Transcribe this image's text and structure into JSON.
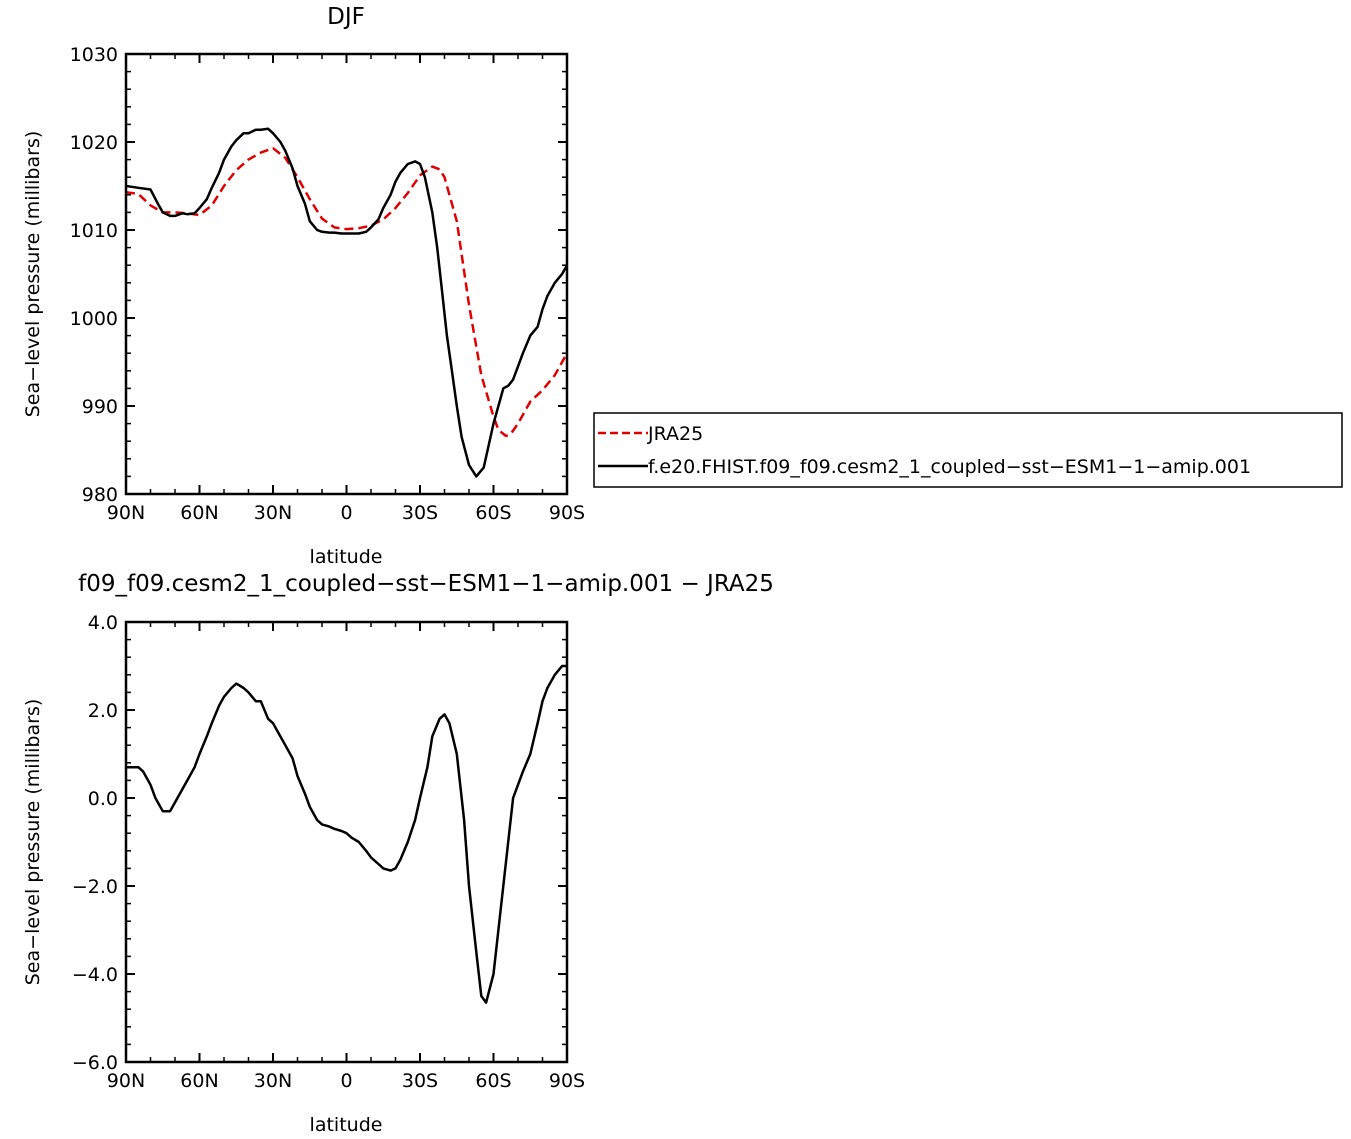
{
  "chart_data": [
    {
      "type": "line",
      "title": "DJF",
      "xlabel": "latitude",
      "ylabel": "Sea−level pressure (millibars)",
      "xlim": [
        90,
        -90
      ],
      "ylim": [
        980,
        1030
      ],
      "x_ticks": [
        90,
        60,
        30,
        0,
        -30,
        -60,
        -90
      ],
      "x_tick_labels": [
        "90N",
        "60N",
        "30N",
        "0",
        "30S",
        "60S",
        "90S"
      ],
      "y_ticks": [
        980,
        990,
        1000,
        1010,
        1020,
        1030
      ],
      "y_tick_labels": [
        "980",
        "990",
        "1000",
        "1010",
        "1020",
        "1030"
      ],
      "legend_position": "outside-right",
      "series": [
        {
          "name": "JRA25",
          "color": "#e00000",
          "dash": true,
          "x": [
            90,
            85,
            80,
            75,
            70,
            65,
            60,
            55,
            50,
            45,
            40,
            35,
            30,
            25,
            20,
            15,
            10,
            5,
            0,
            -5,
            -10,
            -15,
            -20,
            -25,
            -30,
            -35,
            -38,
            -40,
            -45,
            -50,
            -55,
            -60,
            -62,
            -65,
            -67,
            -70,
            -75,
            -80,
            -85,
            -90
          ],
          "y": [
            1014.3,
            1014.1,
            1012.8,
            1012.0,
            1012.0,
            1011.9,
            1011.7,
            1012.8,
            1015.0,
            1016.8,
            1018.0,
            1018.8,
            1019.3,
            1018.2,
            1016.0,
            1013.5,
            1011.3,
            1010.3,
            1010.1,
            1010.2,
            1010.5,
            1011.2,
            1012.5,
            1014.2,
            1016.2,
            1017.2,
            1016.9,
            1016.0,
            1011.0,
            1001.5,
            993.5,
            988.8,
            987.3,
            986.6,
            986.8,
            988.0,
            990.5,
            991.8,
            993.5,
            996.0
          ]
        },
        {
          "name": "f.e20.FHIST.f09_f09.cesm2_1_coupled−sst−ESM1−1−amip.001",
          "color": "#000000",
          "dash": false,
          "x": [
            90,
            85,
            80,
            77,
            75,
            72,
            70,
            67,
            65,
            62,
            60,
            57,
            55,
            52,
            50,
            47,
            45,
            42,
            40,
            37,
            35,
            32,
            30,
            27,
            25,
            22,
            20,
            17,
            15,
            12,
            10,
            7,
            5,
            2,
            0,
            -2,
            -5,
            -8,
            -10,
            -13,
            -15,
            -18,
            -20,
            -22,
            -25,
            -28,
            -30,
            -32,
            -35,
            -37,
            -39,
            -41,
            -43,
            -45,
            -47,
            -50,
            -53,
            -56,
            -58,
            -60,
            -62,
            -64,
            -66,
            -68,
            -70,
            -72,
            -75,
            -78,
            -80,
            -82,
            -85,
            -88,
            -90
          ],
          "y": [
            1015.0,
            1014.8,
            1014.6,
            1013.0,
            1012.0,
            1011.6,
            1011.6,
            1011.9,
            1011.8,
            1011.9,
            1012.5,
            1013.5,
            1014.8,
            1016.5,
            1018.0,
            1019.5,
            1020.2,
            1021.0,
            1021.0,
            1021.4,
            1021.4,
            1021.5,
            1021.0,
            1020.0,
            1019.0,
            1017.0,
            1015.0,
            1013.0,
            1011.0,
            1010.0,
            1009.8,
            1009.7,
            1009.7,
            1009.6,
            1009.6,
            1009.6,
            1009.6,
            1009.8,
            1010.3,
            1011.2,
            1012.5,
            1014.0,
            1015.5,
            1016.5,
            1017.5,
            1017.8,
            1017.5,
            1016.0,
            1012.0,
            1008.0,
            1003.0,
            998.0,
            994.0,
            990.0,
            986.5,
            983.3,
            982.0,
            983.0,
            985.5,
            988.0,
            990.0,
            992.0,
            992.3,
            993.0,
            994.5,
            996.0,
            998.0,
            999.0,
            1001.0,
            1002.5,
            1004.0,
            1005.0,
            1006.0
          ]
        }
      ],
      "legend_entries": [
        "JRA25",
        "f.e20.FHIST.f09_f09.cesm2_1_coupled−sst−ESM1−1−amip.001"
      ]
    },
    {
      "type": "line",
      "title": "f09_f09.cesm2_1_coupled−sst−ESM1−1−amip.001 − JRA25",
      "xlabel": "latitude",
      "ylabel": "Sea−level pressure (millibars)",
      "xlim": [
        90,
        -90
      ],
      "ylim": [
        -6.0,
        4.0
      ],
      "x_ticks": [
        90,
        60,
        30,
        0,
        -30,
        -60,
        -90
      ],
      "x_tick_labels": [
        "90N",
        "60N",
        "30N",
        "0",
        "30S",
        "60S",
        "90S"
      ],
      "y_ticks": [
        -6,
        -4,
        -2,
        0,
        2,
        4
      ],
      "y_tick_labels": [
        "−6.0",
        "−4.0",
        "−2.0",
        "0.0",
        "2.0",
        "4.0"
      ],
      "series": [
        {
          "color": "#000000",
          "x": [
            90,
            85,
            83,
            80,
            78,
            75,
            72,
            70,
            68,
            65,
            62,
            60,
            57,
            55,
            52,
            50,
            47,
            45,
            42,
            40,
            37,
            35,
            32,
            30,
            28,
            25,
            22,
            20,
            17,
            15,
            12,
            10,
            7,
            5,
            2,
            0,
            -2,
            -5,
            -8,
            -10,
            -13,
            -15,
            -18,
            -20,
            -22,
            -25,
            -28,
            -30,
            -33,
            -35,
            -38,
            -40,
            -42,
            -45,
            -48,
            -50,
            -53,
            -55,
            -57,
            -60,
            -62,
            -64,
            -66,
            -68,
            -70,
            -72,
            -75,
            -78,
            -80,
            -82,
            -85,
            -88,
            -90
          ],
          "y": [
            0.7,
            0.7,
            0.6,
            0.3,
            0.0,
            -0.3,
            -0.3,
            -0.1,
            0.1,
            0.4,
            0.7,
            1.0,
            1.4,
            1.7,
            2.1,
            2.3,
            2.5,
            2.6,
            2.5,
            2.4,
            2.2,
            2.2,
            1.8,
            1.7,
            1.5,
            1.2,
            0.9,
            0.5,
            0.1,
            -0.2,
            -0.5,
            -0.6,
            -0.65,
            -0.7,
            -0.75,
            -0.8,
            -0.9,
            -1.0,
            -1.2,
            -1.35,
            -1.5,
            -1.6,
            -1.65,
            -1.6,
            -1.4,
            -1.0,
            -0.5,
            0.0,
            0.7,
            1.4,
            1.8,
            1.9,
            1.7,
            1.0,
            -0.5,
            -2.0,
            -3.5,
            -4.5,
            -4.65,
            -4.0,
            -3.0,
            -2.0,
            -1.0,
            0.0,
            0.3,
            0.6,
            1.0,
            1.7,
            2.2,
            2.5,
            2.8,
            3.0,
            3.0
          ]
        }
      ]
    }
  ]
}
